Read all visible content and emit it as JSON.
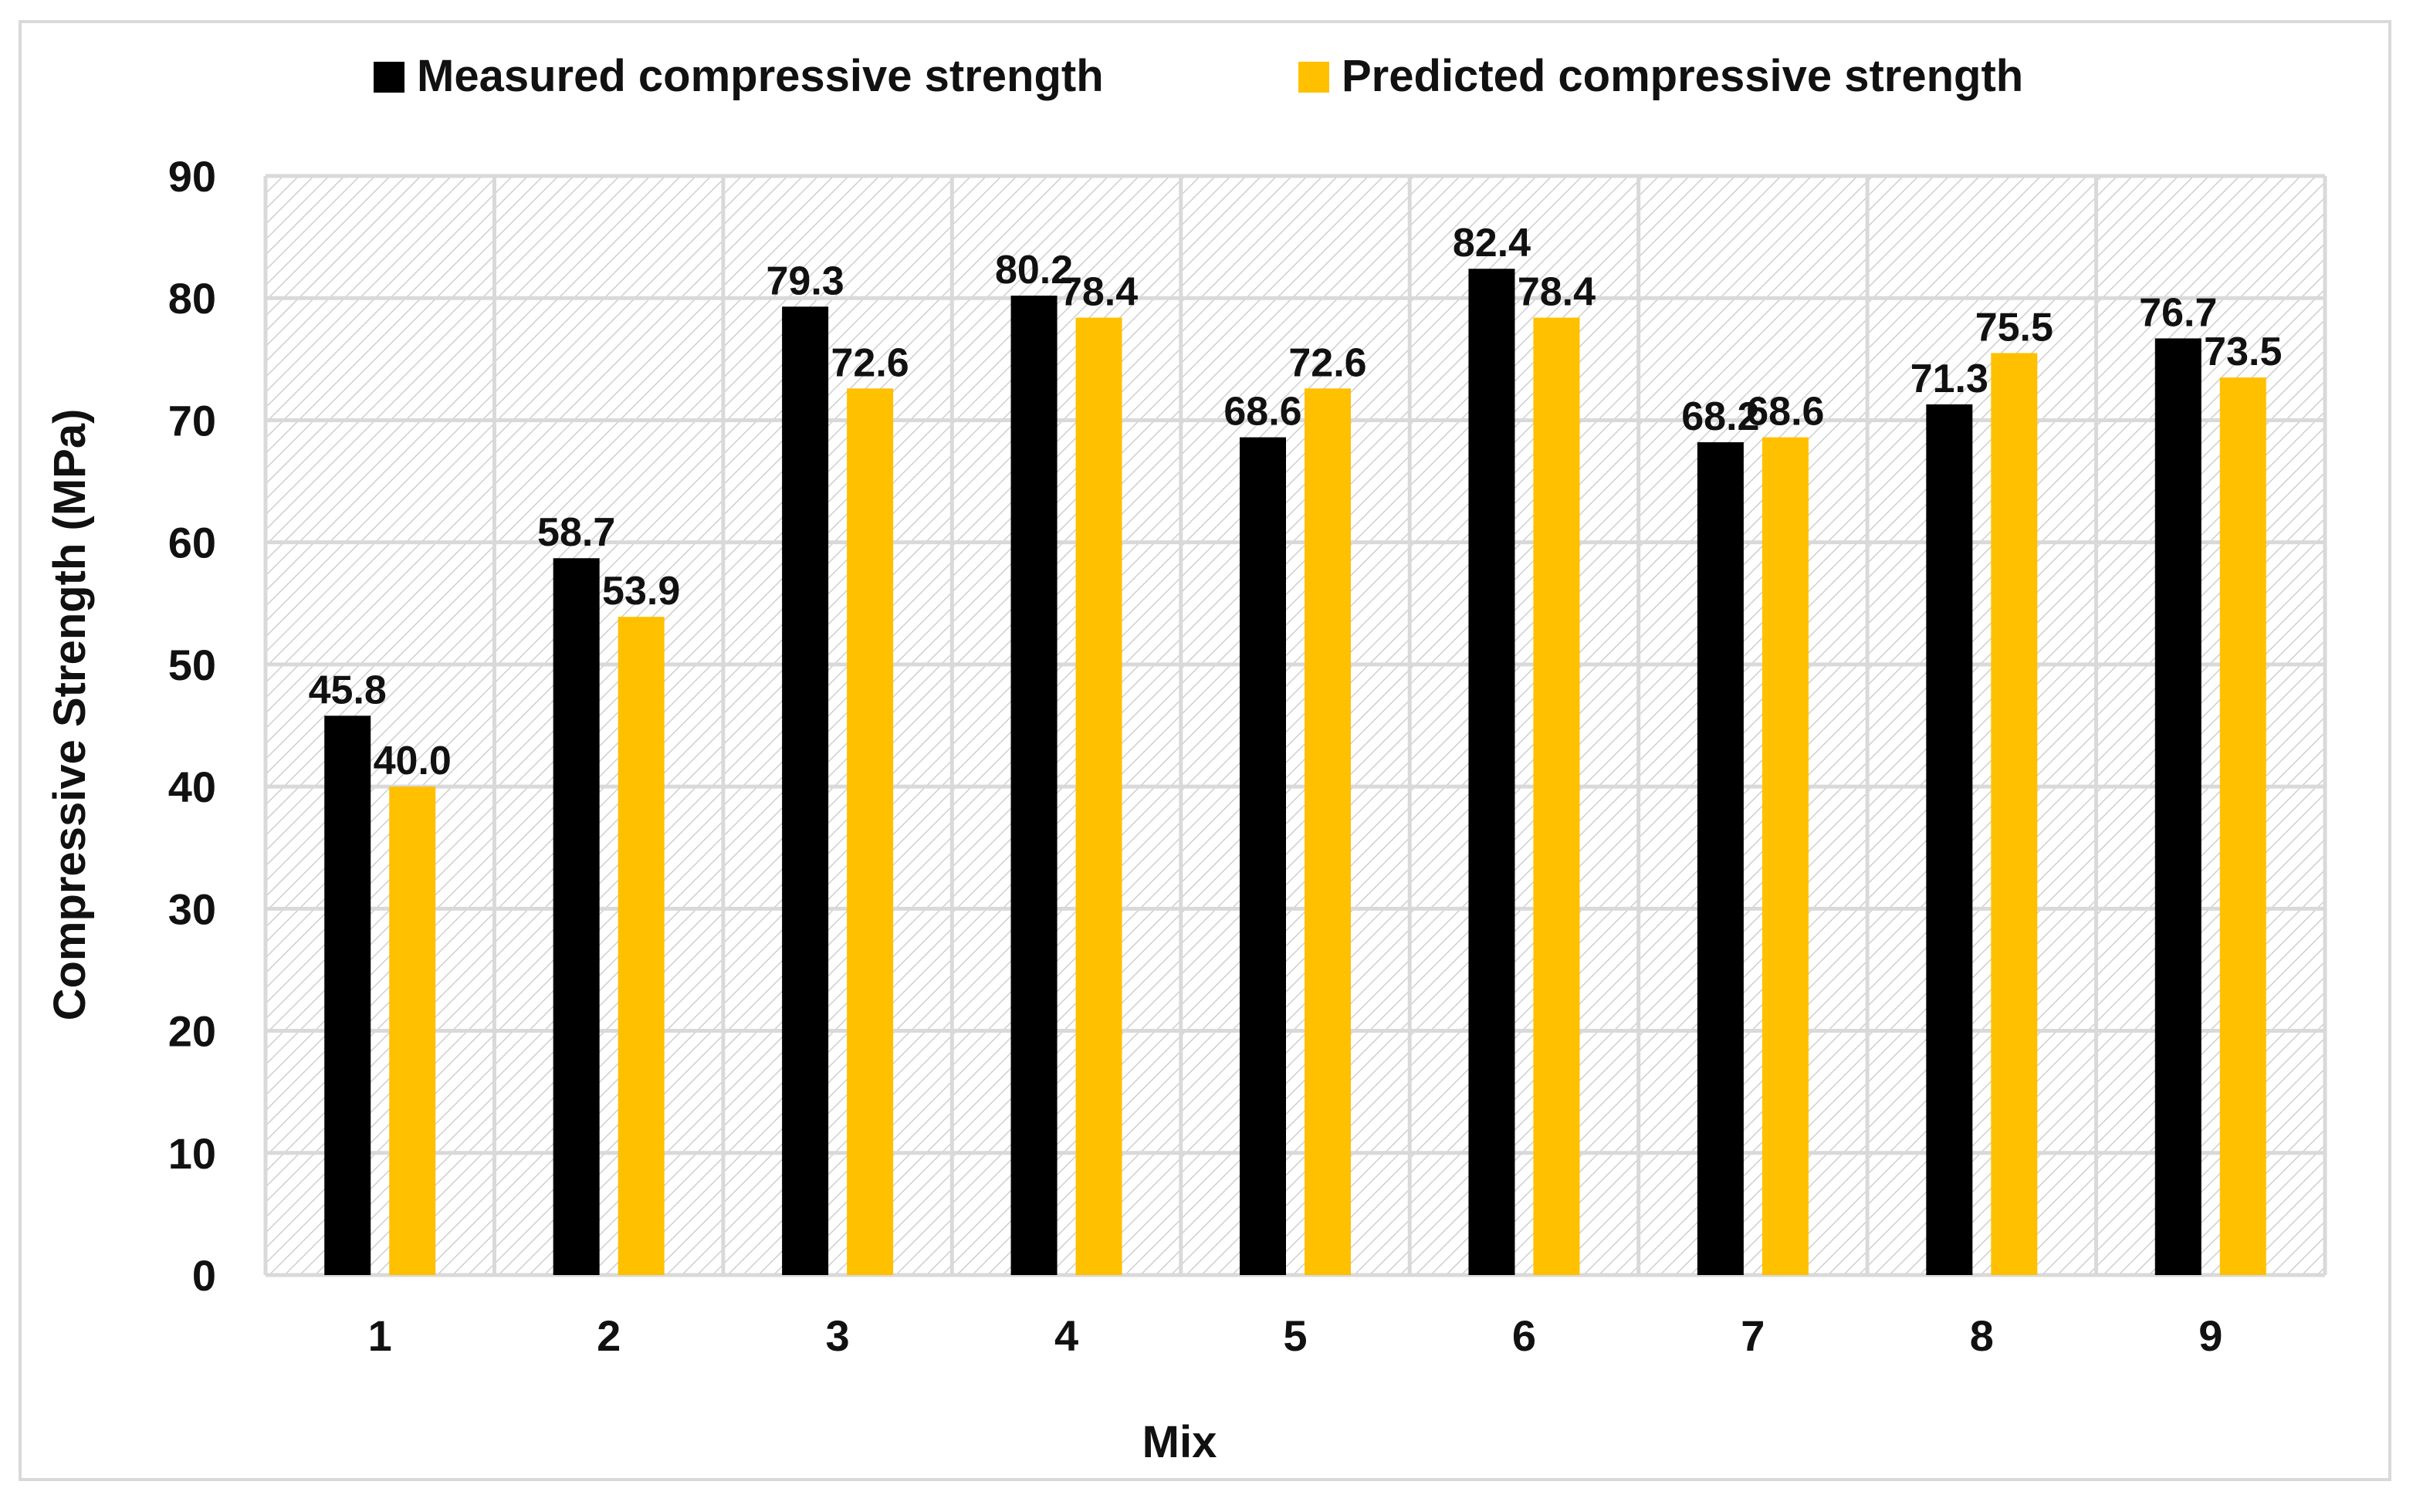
{
  "chart_data": {
    "type": "bar",
    "categories": [
      "1",
      "2",
      "3",
      "4",
      "5",
      "6",
      "7",
      "8",
      "9"
    ],
    "series": [
      {
        "name": "Measured compressive strength",
        "color": "#000000",
        "values": [
          45.8,
          58.7,
          79.3,
          80.2,
          68.6,
          82.4,
          68.2,
          71.3,
          76.7
        ],
        "labels": [
          "45.8",
          "58.7",
          "79.3",
          "80.2",
          "68.6",
          "82.4",
          "68.2",
          "71.3",
          "76.7"
        ]
      },
      {
        "name": "Predicted compressive strength",
        "color": "#FFC000",
        "values": [
          40.0,
          53.9,
          72.6,
          78.4,
          72.6,
          78.4,
          68.6,
          75.5,
          73.5
        ],
        "labels": [
          "40.0",
          "53.9",
          "72.6",
          "78.4",
          "72.6",
          "78.4",
          "68.6",
          "75.5",
          "73.5"
        ]
      }
    ],
    "xlabel": "Mix",
    "ylabel": "Compressive Strength (MPa)",
    "ylim": [
      0,
      90
    ],
    "yticks": [
      "0",
      "10",
      "20",
      "30",
      "40",
      "50",
      "60",
      "70",
      "80",
      "90"
    ],
    "grid": true,
    "legend_position": "top"
  }
}
